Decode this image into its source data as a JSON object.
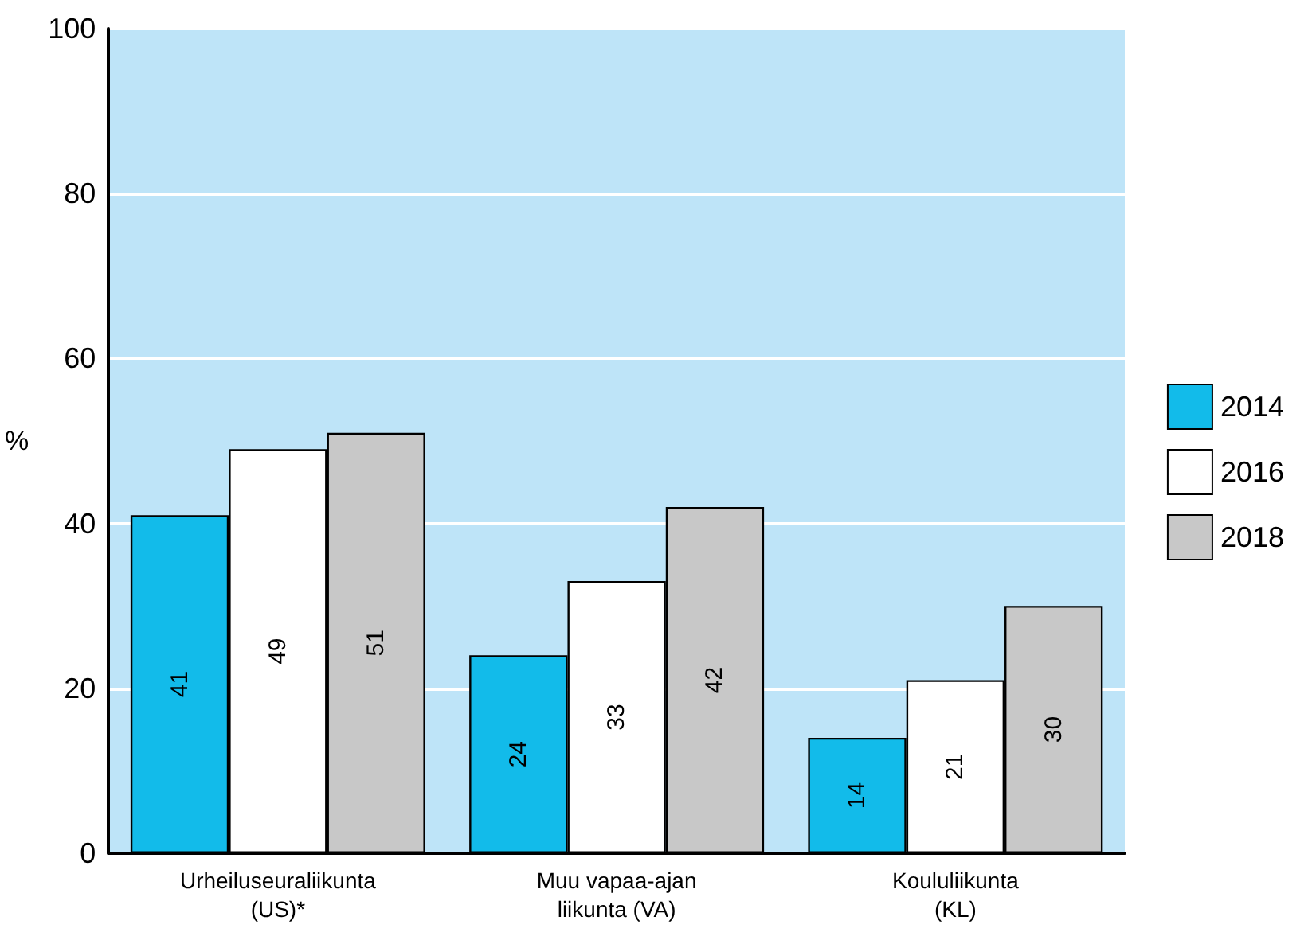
{
  "chart_data": {
    "type": "bar",
    "ylabel": "%",
    "categories": [
      "Urheiluseuraliikunta\n(US)*",
      "Muu vapaa-ajan\nliikunta (VA)",
      "Koululiikunta\n(KL)"
    ],
    "series": [
      {
        "name": "2014",
        "color": "#12bbea",
        "values": [
          41,
          24,
          14
        ]
      },
      {
        "name": "2016",
        "color": "#ffffff",
        "values": [
          49,
          33,
          21
        ]
      },
      {
        "name": "2018",
        "color": "#c8c8c8",
        "values": [
          51,
          42,
          30
        ]
      }
    ],
    "ylim": [
      0,
      100
    ],
    "yticks": [
      0,
      20,
      40,
      60,
      80,
      100
    ],
    "grid": "y",
    "legend": "right",
    "data_labels": true
  }
}
